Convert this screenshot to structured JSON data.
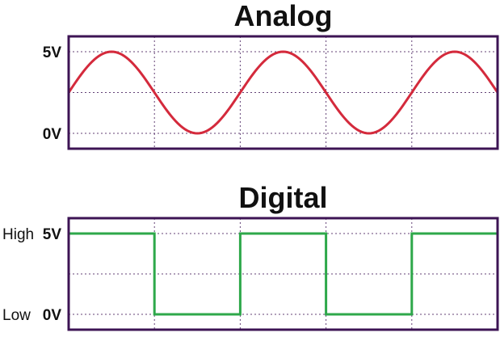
{
  "chart_data": [
    {
      "type": "line",
      "title": "Analog",
      "ylim": [
        -1,
        6
      ],
      "xlim": [
        0,
        5
      ],
      "y_ticks": [
        {
          "value": 5,
          "label": "5V"
        },
        {
          "value": 0,
          "label": "0V"
        }
      ],
      "grid": true,
      "series": [
        {
          "color": "#d42a3c",
          "shape": "sine",
          "min": 0,
          "max": 5,
          "period": 2,
          "x_start": 0,
          "x_end": 5,
          "points": [
            {
              "x": 0,
              "y": 2.5
            },
            {
              "x": 0.5,
              "y": 5
            },
            {
              "x": 1,
              "y": 2.5
            },
            {
              "x": 1.5,
              "y": 0
            },
            {
              "x": 2,
              "y": 2.5
            },
            {
              "x": 2.5,
              "y": 5
            },
            {
              "x": 3,
              "y": 2.5
            },
            {
              "x": 3.5,
              "y": 0
            },
            {
              "x": 4,
              "y": 2.5
            },
            {
              "x": 4.5,
              "y": 5
            },
            {
              "x": 5,
              "y": 2.5
            }
          ]
        }
      ]
    },
    {
      "type": "line",
      "title": "Digital",
      "ylim": [
        -1,
        6
      ],
      "xlim": [
        0,
        5
      ],
      "y_ticks": [
        {
          "value": 5,
          "label": "5V",
          "level_label": "High"
        },
        {
          "value": 0,
          "label": "0V",
          "level_label": "Low"
        }
      ],
      "grid": true,
      "series": [
        {
          "color": "#2ea84a",
          "shape": "square",
          "points": [
            {
              "x": 0,
              "y": 5
            },
            {
              "x": 1,
              "y": 5
            },
            {
              "x": 1,
              "y": 0
            },
            {
              "x": 2,
              "y": 0
            },
            {
              "x": 2,
              "y": 5
            },
            {
              "x": 3,
              "y": 5
            },
            {
              "x": 3,
              "y": 0
            },
            {
              "x": 4,
              "y": 0
            },
            {
              "x": 4,
              "y": 5
            },
            {
              "x": 5,
              "y": 5
            },
            {
              "x": 5,
              "y": 0
            }
          ]
        }
      ]
    }
  ]
}
